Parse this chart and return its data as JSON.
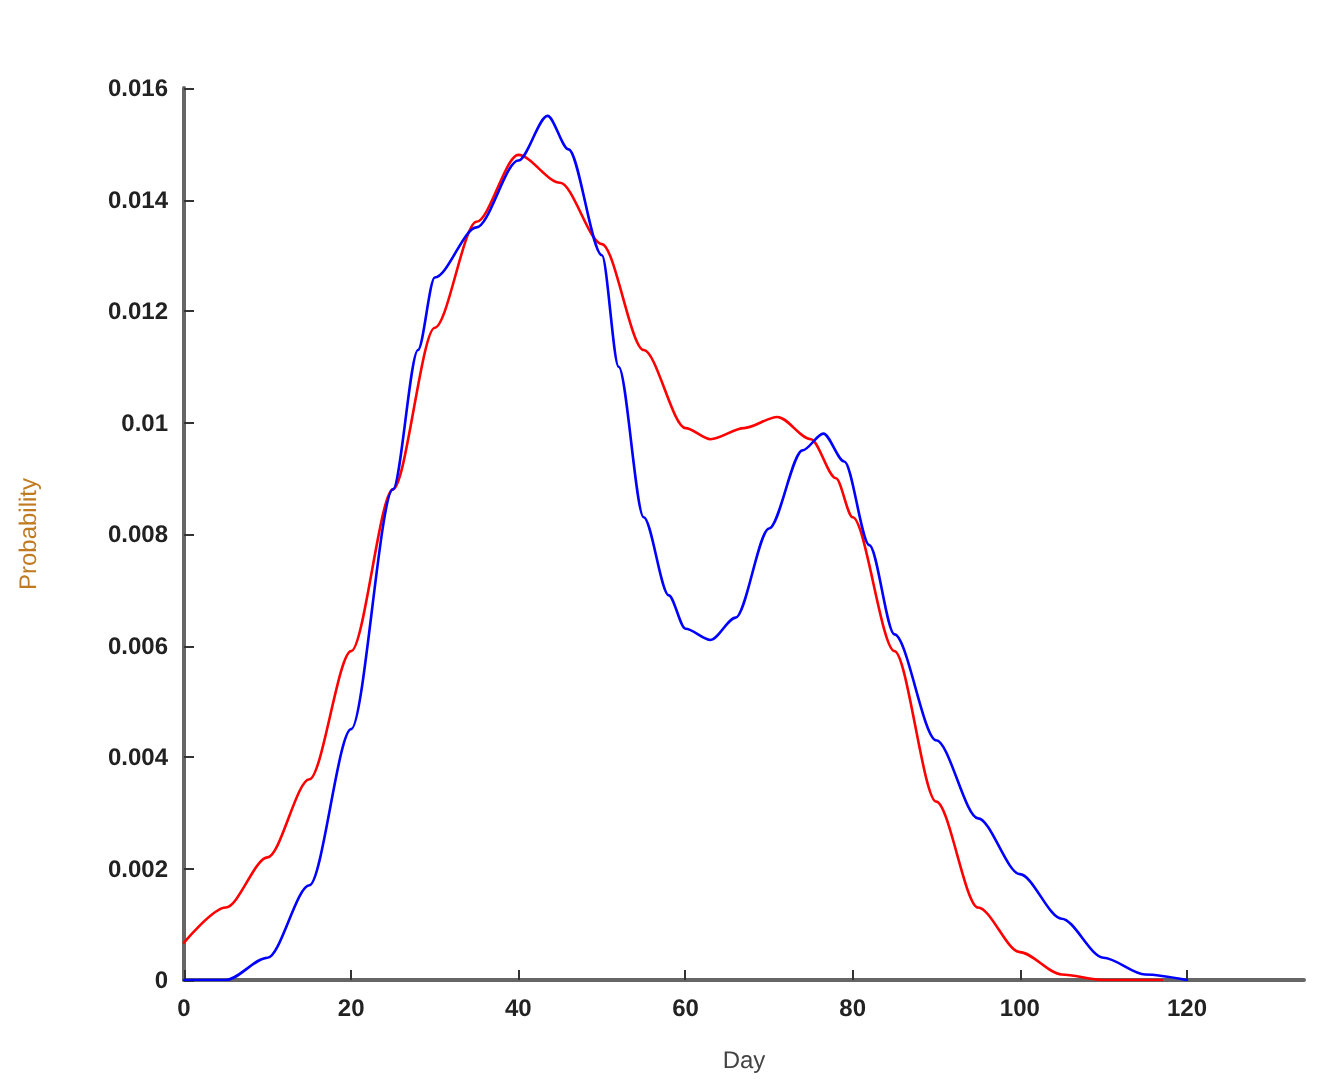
{
  "chart_data": {
    "type": "line",
    "xlabel": "Day",
    "ylabel": "Probability",
    "xlim": [
      0,
      134
    ],
    "ylim": [
      0,
      0.016
    ],
    "xticks": [
      0,
      20,
      40,
      60,
      80,
      100,
      120
    ],
    "yticks": [
      0,
      0.002,
      0.004,
      0.006,
      0.008,
      0.01,
      0.012,
      0.014,
      0.016
    ],
    "grid": false,
    "marker": "none",
    "line_style": "solid",
    "series": [
      {
        "color": "#ff0000",
        "x": [
          0,
          5,
          10,
          15,
          20,
          25,
          30,
          35,
          40,
          45,
          50,
          55,
          60,
          63,
          67,
          71,
          75,
          78,
          80,
          85,
          90,
          95,
          100,
          105,
          110,
          117
        ],
        "values": [
          0.00067,
          0.0013,
          0.0022,
          0.0036,
          0.0059,
          0.0088,
          0.0117,
          0.0136,
          0.0148,
          0.0143,
          0.0132,
          0.0113,
          0.0099,
          0.0097,
          0.0099,
          0.0101,
          0.0097,
          0.009,
          0.0083,
          0.0059,
          0.0032,
          0.0013,
          0.0005,
          0.0001,
          0,
          0
        ]
      },
      {
        "color": "#0000ff",
        "x": [
          0,
          5,
          10,
          15,
          20,
          25,
          28,
          30,
          35,
          40,
          43.5,
          46,
          50,
          52,
          55,
          58,
          60,
          63,
          66,
          70,
          74,
          76.5,
          79,
          82,
          85,
          90,
          95,
          100,
          105,
          110,
          115,
          120
        ],
        "values": [
          0,
          0,
          0.0004,
          0.0017,
          0.0045,
          0.0088,
          0.0113,
          0.0126,
          0.0135,
          0.0147,
          0.0155,
          0.0149,
          0.013,
          0.011,
          0.0083,
          0.0069,
          0.0063,
          0.0061,
          0.0065,
          0.0081,
          0.0095,
          0.0098,
          0.0093,
          0.0078,
          0.0062,
          0.0043,
          0.0029,
          0.0019,
          0.0011,
          0.0004,
          0.0001,
          0
        ]
      }
    ]
  }
}
